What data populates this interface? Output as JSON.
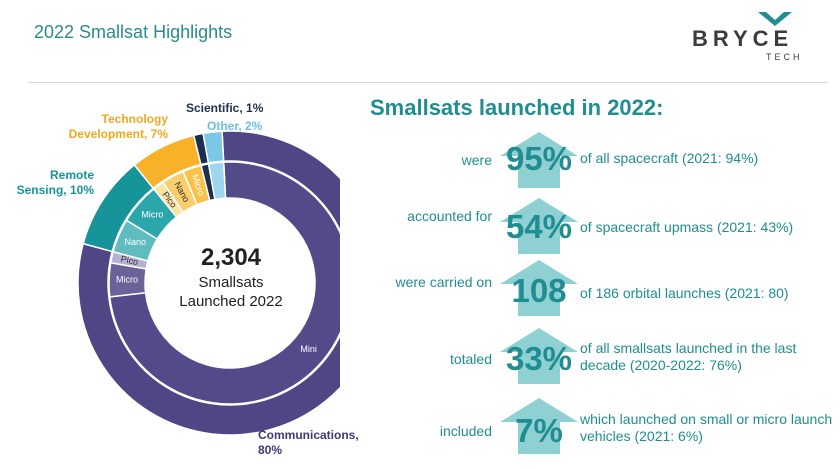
{
  "page": {
    "title": "2022 Smallsat Highlights"
  },
  "logo": {
    "main": "BRYCE",
    "sub": "TECH"
  },
  "headline": "Smallsats launched in 2022:",
  "donut_center": {
    "count": "2,304",
    "line1": "Smallsats",
    "line2": "Launched 2022"
  },
  "outer_labels": {
    "communications": "Communications, 80%",
    "remote_sensing": "Remote Sensing, 10%",
    "technology": "Technology Development, 7%",
    "scientific": "Scientific, 1%",
    "other": "Other, 2%"
  },
  "colors": {
    "communications": "#4f4686",
    "remote_sensing": "#17949a",
    "technology": "#f7b22a",
    "scientific": "#1d2f4f",
    "other": "#7ac7e8",
    "teal_text": "#1f8d92"
  },
  "chart_data": {
    "type": "pie",
    "title": "",
    "total": 2304,
    "outer_ring": [
      {
        "name": "Communications",
        "value": 80,
        "color": "#4f4686"
      },
      {
        "name": "Remote Sensing",
        "value": 10,
        "color": "#17949a"
      },
      {
        "name": "Technology Development",
        "value": 7,
        "color": "#f7b22a"
      },
      {
        "name": "Scientific",
        "value": 1,
        "color": "#1d2f4f"
      },
      {
        "name": "Other",
        "value": 2,
        "color": "#7ac7e8"
      }
    ],
    "inner_ring": [
      {
        "parent": "Communications",
        "label": "Mini",
        "value": 74.0,
        "color": "#534a8a"
      },
      {
        "parent": "Communications",
        "label": "Micro",
        "value": 4.5,
        "color": "#6a6399"
      },
      {
        "parent": "Communications",
        "label": "Pico",
        "value": 1.5,
        "color": "#b7b1d2"
      },
      {
        "parent": "Remote Sensing",
        "label": "Nano",
        "value": 4.5,
        "color": "#5fbcc0"
      },
      {
        "parent": "Remote Sensing",
        "label": "Micro",
        "value": 5.5,
        "color": "#2ba6ab"
      },
      {
        "parent": "Technology Development",
        "label": "Pico",
        "value": 1.5,
        "color": "#fbe3a2"
      },
      {
        "parent": "Technology Development",
        "label": "Nano",
        "value": 3.0,
        "color": "#f9cf6c"
      },
      {
        "parent": "Technology Development",
        "label": "Micro",
        "value": 2.5,
        "color": "#f8c24a"
      },
      {
        "parent": "Scientific",
        "label": "",
        "value": 1.0,
        "color": "#1d2f4f"
      },
      {
        "parent": "Other",
        "label": "",
        "value": 2.0,
        "color": "#9fd6ee"
      }
    ]
  },
  "stats": [
    {
      "verb": "were",
      "value": "95%",
      "desc": "of all spacecraft  (2021: 94%)"
    },
    {
      "verb": "accounted for",
      "value": "54%",
      "desc": "of spacecraft upmass (2021: 43%)"
    },
    {
      "verb": "were carried on",
      "value": "108",
      "desc": "of 186 orbital launches (2021: 80)"
    },
    {
      "verb": "totaled",
      "value": "33%",
      "desc": "of all smallsats launched in the last decade (2020-2022: 76%)"
    },
    {
      "verb": "included",
      "value": "7%",
      "desc": "which launched on small or micro launch vehicles (2021: 6%)"
    }
  ]
}
